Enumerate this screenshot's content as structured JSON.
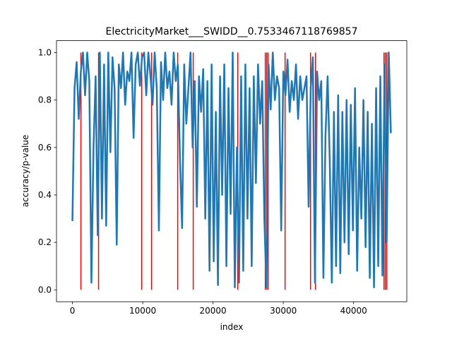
{
  "chart_data": {
    "type": "line",
    "title": "ElectricityMarket___SWIDD__0.7533467118769857",
    "x_label": "index",
    "y_label": "accuracy/p-value",
    "xlim": [
      -2265,
      47565
    ],
    "ylim": [
      -0.05,
      1.05
    ],
    "xticks": [
      0,
      10000,
      20000,
      30000,
      40000
    ],
    "yticks": [
      {
        "value": 0,
        "label": "0.0"
      },
      0.2,
      0.4,
      0.6,
      0.8,
      {
        "value": 1,
        "label": "1.0"
      }
    ],
    "x": [
      0,
      300,
      600,
      900,
      1200,
      1500,
      1800,
      2100,
      2400,
      2700,
      3000,
      3300,
      3600,
      3900,
      4200,
      4500,
      4800,
      5100,
      5400,
      5700,
      6000,
      6300,
      6600,
      6900,
      7200,
      7500,
      7800,
      8100,
      8400,
      8700,
      9000,
      9300,
      9600,
      9900,
      10200,
      10500,
      10800,
      11100,
      11400,
      11700,
      12000,
      12300,
      12600,
      12900,
      13200,
      13500,
      13800,
      14100,
      14400,
      14700,
      15000,
      15300,
      15600,
      15900,
      16200,
      16500,
      16800,
      17100,
      17400,
      17700,
      18000,
      18300,
      18600,
      18900,
      19200,
      19500,
      19800,
      20100,
      20400,
      20700,
      21000,
      21300,
      21600,
      21900,
      22200,
      22500,
      22800,
      23100,
      23400,
      23700,
      24000,
      24300,
      24600,
      24900,
      25200,
      25500,
      25800,
      26100,
      26400,
      26700,
      27000,
      27300,
      27600,
      27900,
      28200,
      28500,
      28800,
      29100,
      29400,
      29700,
      30000,
      30300,
      30600,
      30900,
      31200,
      31500,
      31800,
      32100,
      32400,
      32700,
      33000,
      33300,
      33600,
      33900,
      34200,
      34500,
      34800,
      35100,
      35400,
      35700,
      36000,
      36300,
      36600,
      36900,
      37200,
      37500,
      37800,
      38100,
      38400,
      38700,
      39000,
      39300,
      39600,
      39900,
      40200,
      40500,
      40800,
      41100,
      41400,
      41700,
      42000,
      42300,
      42600,
      42900,
      43200,
      43500,
      43800,
      44100,
      44400,
      44700,
      45000,
      45300
    ],
    "series": [
      {
        "name": "accuracy",
        "color": "#1f77b4",
        "values": [
          0.29,
          0.85,
          0.96,
          0.72,
          0.92,
          1.0,
          0.82,
          1.0,
          0.88,
          0.03,
          0.6,
          0.9,
          0.23,
          1.0,
          0.3,
          0.95,
          0.27,
          1.0,
          0.58,
          0.98,
          0.85,
          0.19,
          0.95,
          0.85,
          1.0,
          0.78,
          0.92,
          0.88,
          1.0,
          0.64,
          0.95,
          1.0,
          0.86,
          0.98,
          1.0,
          0.82,
          1.0,
          0.9,
          0.78,
          1.0,
          0.85,
          0.25,
          0.96,
          0.8,
          1.0,
          0.85,
          0.92,
          0.78,
          1.0,
          0.88,
          0.95,
          0.55,
          0.26,
          0.95,
          0.7,
          0.85,
          1.0,
          0.6,
          0.88,
          0.35,
          0.9,
          0.75,
          0.93,
          0.3,
          0.88,
          0.08,
          0.95,
          0.12,
          0.75,
          0.02,
          0.9,
          0.4,
          0.95,
          0.1,
          0.85,
          0.32,
          1.0,
          0.01,
          0.6,
          0.03,
          0.9,
          0.08,
          0.95,
          0.3,
          0.85,
          0.1,
          0.9,
          0.45,
          0.95,
          0.7,
          0.88,
          0.3,
          0.01,
          0.95,
          0.76,
          1.0,
          0.8,
          0.9,
          0.85,
          0.25,
          0.92,
          0.82,
          0.97,
          0.75,
          0.88,
          0.8,
          0.95,
          0.72,
          0.9,
          0.8,
          0.85,
          0.9,
          0.35,
          0.85,
          0.98,
          0.03,
          0.92,
          0.8,
          0.88,
          0.05,
          0.65,
          0.9,
          0.55,
          0.03,
          0.75,
          0.1,
          0.82,
          0.07,
          0.75,
          0.2,
          0.8,
          0.15,
          0.78,
          0.25,
          0.85,
          0.08,
          0.6,
          0.3,
          0.8,
          0.18,
          0.75,
          0.05,
          0.7,
          0.01,
          0.85,
          0.1,
          0.9,
          0.06,
          0.95,
          0.2,
          1.0,
          0.66
        ]
      }
    ],
    "vlines": {
      "color": "#ff0000",
      "ymin": 0,
      "ymax": 1,
      "x": [
        1206,
        3718,
        9850,
        11256,
        14975,
        17186,
        23517,
        27437,
        27640,
        27839,
        30251,
        33870,
        34573,
        44320,
        44520,
        44724
      ]
    }
  }
}
